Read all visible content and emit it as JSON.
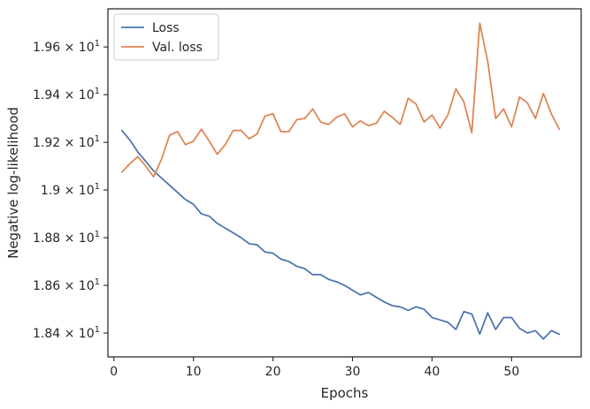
{
  "chart_data": {
    "type": "line",
    "xlabel": "Epochs",
    "ylabel": "Negative log-likelihood",
    "xlim": [
      -0.75,
      58.75
    ],
    "ylim": [
      18.3,
      19.76
    ],
    "x_ticks": [
      0,
      10,
      20,
      30,
      40,
      50
    ],
    "x_tick_labels": [
      "0",
      "10",
      "20",
      "30",
      "40",
      "50"
    ],
    "y_ticks": [
      18.4,
      18.6,
      18.8,
      19.0,
      19.2,
      19.4,
      19.6
    ],
    "y_tick_labels": [
      {
        "mantissa": "1.84",
        "base": "10",
        "exp": "1"
      },
      {
        "mantissa": "1.86",
        "base": "10",
        "exp": "1"
      },
      {
        "mantissa": "1.88",
        "base": "10",
        "exp": "1"
      },
      {
        "mantissa": "1.9",
        "base": "10",
        "exp": "1"
      },
      {
        "mantissa": "1.92",
        "base": "10",
        "exp": "1"
      },
      {
        "mantissa": "1.94",
        "base": "10",
        "exp": "1"
      },
      {
        "mantissa": "1.96",
        "base": "10",
        "exp": "1"
      }
    ],
    "grid": false,
    "legend": "top-left",
    "series": [
      {
        "name": "Loss",
        "color": "#4c72b0",
        "x": [
          1,
          2,
          3,
          4,
          5,
          6,
          7,
          8,
          9,
          10,
          11,
          12,
          13,
          14,
          15,
          16,
          17,
          18,
          19,
          20,
          21,
          22,
          23,
          24,
          25,
          26,
          27,
          28,
          29,
          30,
          31,
          32,
          33,
          34,
          35,
          36,
          37,
          38,
          39,
          40,
          41,
          42,
          43,
          44,
          45,
          46,
          47,
          48,
          49,
          50,
          51,
          52,
          53,
          54,
          55,
          56
        ],
        "values": [
          19.25,
          19.21,
          19.16,
          19.12,
          19.08,
          19.05,
          19.02,
          18.99,
          18.96,
          18.94,
          18.9,
          18.89,
          18.86,
          18.84,
          18.82,
          18.8,
          18.775,
          18.77,
          18.74,
          18.735,
          18.71,
          18.7,
          18.68,
          18.67,
          18.645,
          18.645,
          18.625,
          18.615,
          18.6,
          18.58,
          18.56,
          18.57,
          18.55,
          18.53,
          18.515,
          18.51,
          18.495,
          18.51,
          18.5,
          18.465,
          18.455,
          18.445,
          18.415,
          18.49,
          18.48,
          18.395,
          18.485,
          18.415,
          18.465,
          18.465,
          18.42,
          18.4,
          18.41,
          18.375,
          18.41,
          18.395
        ]
      },
      {
        "name": "Val. loss",
        "color": "#dd8452",
        "x": [
          1,
          2,
          3,
          4,
          5,
          6,
          7,
          8,
          9,
          10,
          11,
          12,
          13,
          14,
          15,
          16,
          17,
          18,
          19,
          20,
          21,
          22,
          23,
          24,
          25,
          26,
          27,
          28,
          29,
          30,
          31,
          32,
          33,
          34,
          35,
          36,
          37,
          38,
          39,
          40,
          41,
          42,
          43,
          44,
          45,
          46,
          47,
          48,
          49,
          50,
          51,
          52,
          53,
          54,
          55,
          56
        ],
        "values": [
          19.075,
          19.11,
          19.14,
          19.1,
          19.055,
          19.13,
          19.23,
          19.245,
          19.19,
          19.205,
          19.255,
          19.205,
          19.15,
          19.19,
          19.25,
          19.25,
          19.215,
          19.235,
          19.31,
          19.32,
          19.245,
          19.245,
          19.295,
          19.3,
          19.34,
          19.285,
          19.275,
          19.305,
          19.32,
          19.265,
          19.29,
          19.27,
          19.28,
          19.33,
          19.305,
          19.275,
          19.385,
          19.36,
          19.285,
          19.315,
          19.26,
          19.315,
          19.425,
          19.37,
          19.24,
          19.7,
          19.54,
          19.3,
          19.34,
          19.265,
          19.39,
          19.365,
          19.3,
          19.405,
          19.32,
          19.255
        ]
      }
    ]
  }
}
